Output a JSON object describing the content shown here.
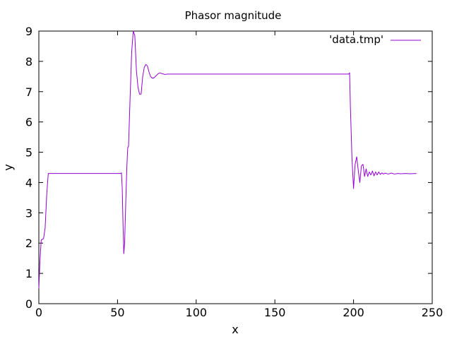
{
  "chart_data": {
    "type": "line",
    "title": "Phasor magnitude",
    "xlabel": "x",
    "ylabel": "y",
    "xlim": [
      0,
      250
    ],
    "ylim": [
      0,
      9
    ],
    "xticks": [
      0,
      50,
      100,
      150,
      200,
      250
    ],
    "yticks": [
      0,
      1,
      2,
      3,
      4,
      5,
      6,
      7,
      8,
      9
    ],
    "grid": false,
    "legend_position": "top-right",
    "series": [
      {
        "name": "'data.tmp'",
        "color": "#9400d3",
        "points": [
          [
            0,
            0.5
          ],
          [
            0.7,
            1.4
          ],
          [
            1.5,
            2.1
          ],
          [
            3,
            2.15
          ],
          [
            4,
            2.5
          ],
          [
            5,
            3.6
          ],
          [
            6,
            4.3
          ],
          [
            52,
            4.3
          ],
          [
            52.5,
            4.32
          ],
          [
            53,
            3.8
          ],
          [
            53.5,
            2.6
          ],
          [
            54,
            1.65
          ],
          [
            54.5,
            2.0
          ],
          [
            55.5,
            3.8
          ],
          [
            56,
            4.6
          ],
          [
            56.5,
            5.15
          ],
          [
            57,
            5.2
          ],
          [
            58,
            6.8
          ],
          [
            59,
            8.3
          ],
          [
            60,
            9.0
          ],
          [
            61,
            8.85
          ],
          [
            62,
            7.7
          ],
          [
            63,
            7.15
          ],
          [
            64,
            6.92
          ],
          [
            65,
            6.92
          ],
          [
            66,
            7.5
          ],
          [
            67,
            7.8
          ],
          [
            68,
            7.9
          ],
          [
            69,
            7.85
          ],
          [
            70,
            7.65
          ],
          [
            71,
            7.5
          ],
          [
            72,
            7.45
          ],
          [
            73,
            7.45
          ],
          [
            74,
            7.5
          ],
          [
            75,
            7.55
          ],
          [
            76,
            7.6
          ],
          [
            77,
            7.62
          ],
          [
            78,
            7.6
          ],
          [
            80,
            7.57
          ],
          [
            82,
            7.58
          ],
          [
            197,
            7.58
          ],
          [
            197.5,
            7.62
          ],
          [
            198,
            6.5
          ],
          [
            199,
            4.8
          ],
          [
            200,
            3.8
          ],
          [
            201,
            4.6
          ],
          [
            202,
            4.85
          ],
          [
            203,
            4.4
          ],
          [
            204,
            4.0
          ],
          [
            205,
            4.55
          ],
          [
            206,
            4.6
          ],
          [
            207,
            4.2
          ],
          [
            208,
            4.45
          ],
          [
            209,
            4.2
          ],
          [
            210,
            4.35
          ],
          [
            211,
            4.25
          ],
          [
            212,
            4.38
          ],
          [
            213,
            4.22
          ],
          [
            214,
            4.35
          ],
          [
            215,
            4.25
          ],
          [
            216,
            4.35
          ],
          [
            217,
            4.27
          ],
          [
            218,
            4.32
          ],
          [
            219,
            4.28
          ],
          [
            220,
            4.31
          ],
          [
            222,
            4.28
          ],
          [
            224,
            4.31
          ],
          [
            226,
            4.28
          ],
          [
            228,
            4.3
          ],
          [
            230,
            4.29
          ],
          [
            233,
            4.3
          ],
          [
            236,
            4.29
          ],
          [
            240,
            4.3
          ]
        ]
      }
    ]
  }
}
